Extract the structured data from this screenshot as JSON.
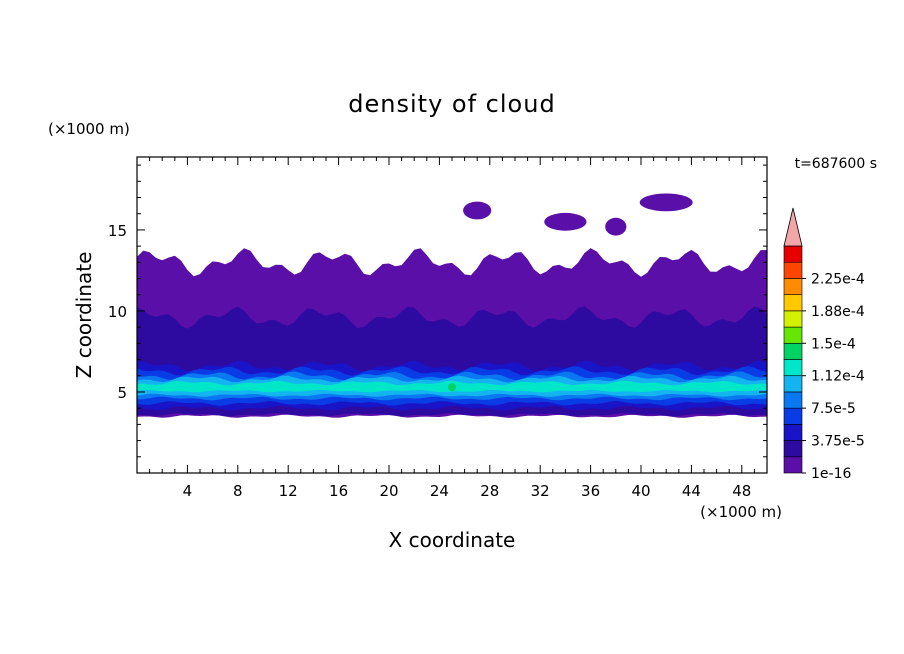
{
  "chart_data": {
    "type": "heatmap",
    "title": "density of cloud",
    "xlabel": "X coordinate",
    "ylabel": "Z coordinate",
    "x_unit": "(×1000 m)",
    "y_unit": "(×1000 m)",
    "time_label": "t=687600 s",
    "xlim": [
      0,
      50
    ],
    "ylim": [
      0,
      19.5
    ],
    "x_ticks": [
      4,
      8,
      12,
      16,
      20,
      24,
      28,
      32,
      36,
      40,
      44,
      48
    ],
    "y_ticks": [
      5,
      10,
      15
    ],
    "colorbar": {
      "levels": [
        1e-16,
        1.875e-05,
        3.75e-05,
        5.625e-05,
        7.5e-05,
        9.375e-05,
        0.0001125,
        0.00013125,
        0.00015,
        0.00016875,
        0.0001875,
        0.00020625,
        0.000225,
        0.00024375
      ],
      "tick_labels": [
        "1e-16",
        "3.75e-5",
        "7.5e-5",
        "1.12e-4",
        "1.5e-4",
        "1.88e-4",
        "2.25e-4"
      ],
      "colors": [
        "#5a0fa8",
        "#2d0aa0",
        "#1a14c8",
        "#0a3ce6",
        "#0a78f0",
        "#14b4f0",
        "#00e6c8",
        "#00d264",
        "#64e600",
        "#d2f000",
        "#ffc800",
        "#ff8c00",
        "#ff4600",
        "#e60000"
      ],
      "over_color": "#f4a6a6"
    },
    "field": {
      "cloud_base_km": 3.5,
      "cloud_top_km": 14.0,
      "bright_core_km": [
        4.5,
        6.0
      ],
      "peak_density_approx": 0.00012,
      "peak_location_km": [
        25,
        5.3
      ]
    }
  }
}
